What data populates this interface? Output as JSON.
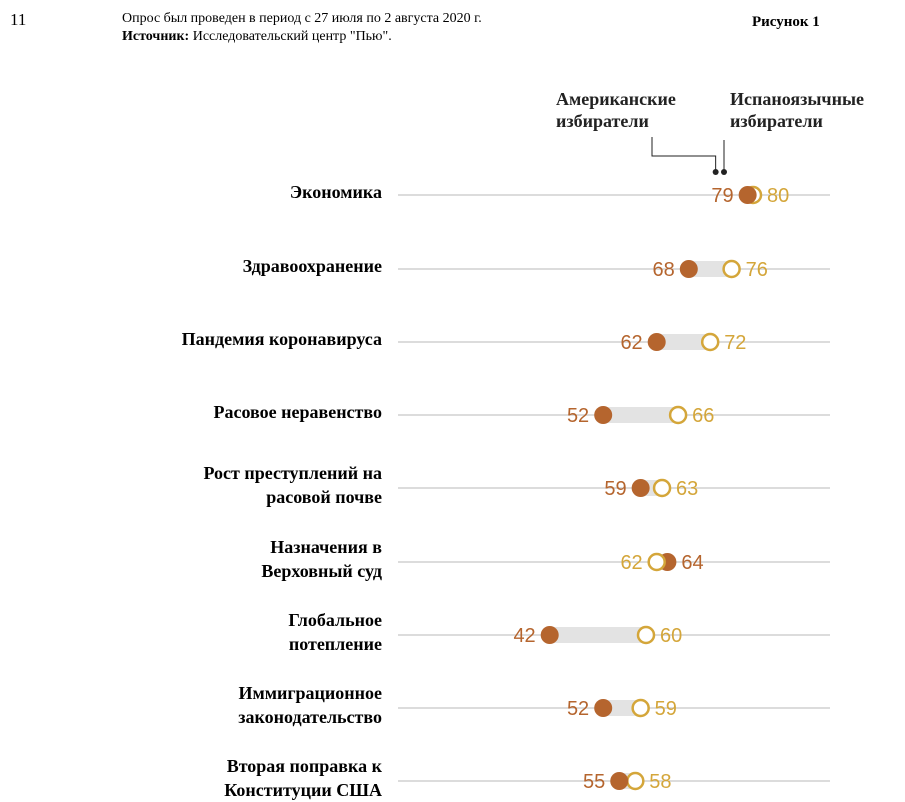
{
  "page_number": "11",
  "note": {
    "survey_text": "Опрос был проведен в период с 27 июля по 2 августа 2020 г.",
    "source_label": "Источник:",
    "source_text": " Исследовательский центр \"Пью\"."
  },
  "figure_label": "Рисунок 1",
  "colors": {
    "american": "#b5652e",
    "hispanic": "#d4a63a",
    "axis_line": "#c8c8c8",
    "range_bar": "#e3e3e3"
  },
  "chart_data": {
    "type": "dot",
    "legend": {
      "american": "Американские избиратели",
      "hispanic": "Испаноязычные избиратели"
    },
    "categories": [
      "Экономика",
      "Здравоохранение",
      "Пандемия коронавируса",
      "Расовое неравенство",
      "Рост преступлений на расовой почве",
      "Назначения в Верховный суд",
      "Глобальное потепление",
      "Иммиграционное законодательство",
      "Вторая поправка к Конституции США"
    ],
    "category_lines": [
      [
        "Экономика"
      ],
      [
        "Здравоохранение"
      ],
      [
        "Пандемия коронавируса"
      ],
      [
        "Расовое неравенство"
      ],
      [
        "Рост преступлений на",
        "расовой почве"
      ],
      [
        "Назначения в",
        "Верховный суд"
      ],
      [
        "Глобальное",
        "потепление"
      ],
      [
        "Иммиграционное",
        "законодательство"
      ],
      [
        "Вторая поправка к",
        "Конституции США"
      ]
    ],
    "series": [
      {
        "key": "american",
        "values": [
          79,
          68,
          62,
          52,
          59,
          64,
          42,
          52,
          55
        ]
      },
      {
        "key": "hispanic",
        "values": [
          80,
          76,
          72,
          66,
          63,
          62,
          60,
          59,
          58
        ]
      }
    ],
    "data_labels": [
      {
        "left": "79",
        "right": "80"
      },
      {
        "left": "68",
        "right": "76"
      },
      {
        "left": "62",
        "right": "72"
      },
      {
        "left": "52",
        "right": "66"
      },
      {
        "left": "59",
        "right": "63"
      },
      {
        "left": "62",
        "right": "64"
      },
      {
        "left": "42",
        "right": "60"
      },
      {
        "left": "52",
        "right": "59"
      },
      {
        "left": "55",
        "right": "58"
      }
    ]
  }
}
